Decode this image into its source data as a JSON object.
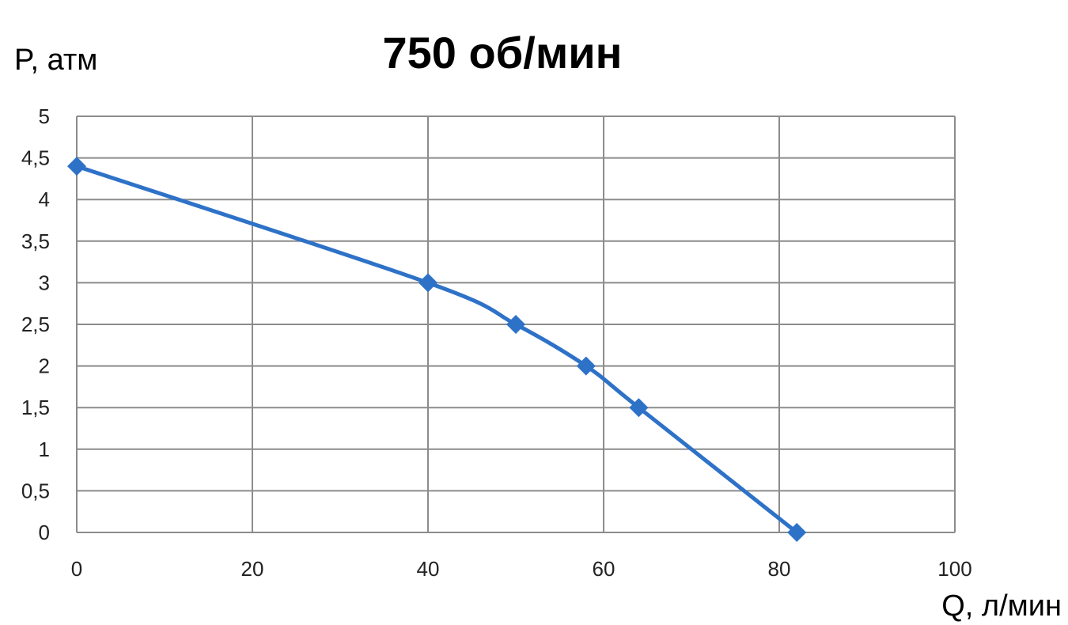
{
  "chart_data": {
    "type": "line",
    "title": "750 об/мин",
    "xlabel": "Q, л/мин",
    "ylabel": "P, атм",
    "xlim": [
      0,
      100
    ],
    "ylim": [
      0,
      5
    ],
    "x_ticks": [
      "0",
      "20",
      "40",
      "60",
      "80",
      "100"
    ],
    "y_ticks": [
      "0",
      "0,5",
      "1",
      "1,5",
      "2",
      "2,5",
      "3",
      "3,5",
      "4",
      "4,5",
      "5"
    ],
    "grid": true,
    "legend": "none",
    "smooth": true,
    "marker": "diamond",
    "series": [
      {
        "color": "#2e72c8",
        "points": [
          {
            "x": 0,
            "y": 4.4
          },
          {
            "x": 40,
            "y": 3.0
          },
          {
            "x": 50,
            "y": 2.5
          },
          {
            "x": 58,
            "y": 2.0
          },
          {
            "x": 64,
            "y": 1.5
          },
          {
            "x": 82,
            "y": 0.0
          }
        ]
      }
    ]
  }
}
